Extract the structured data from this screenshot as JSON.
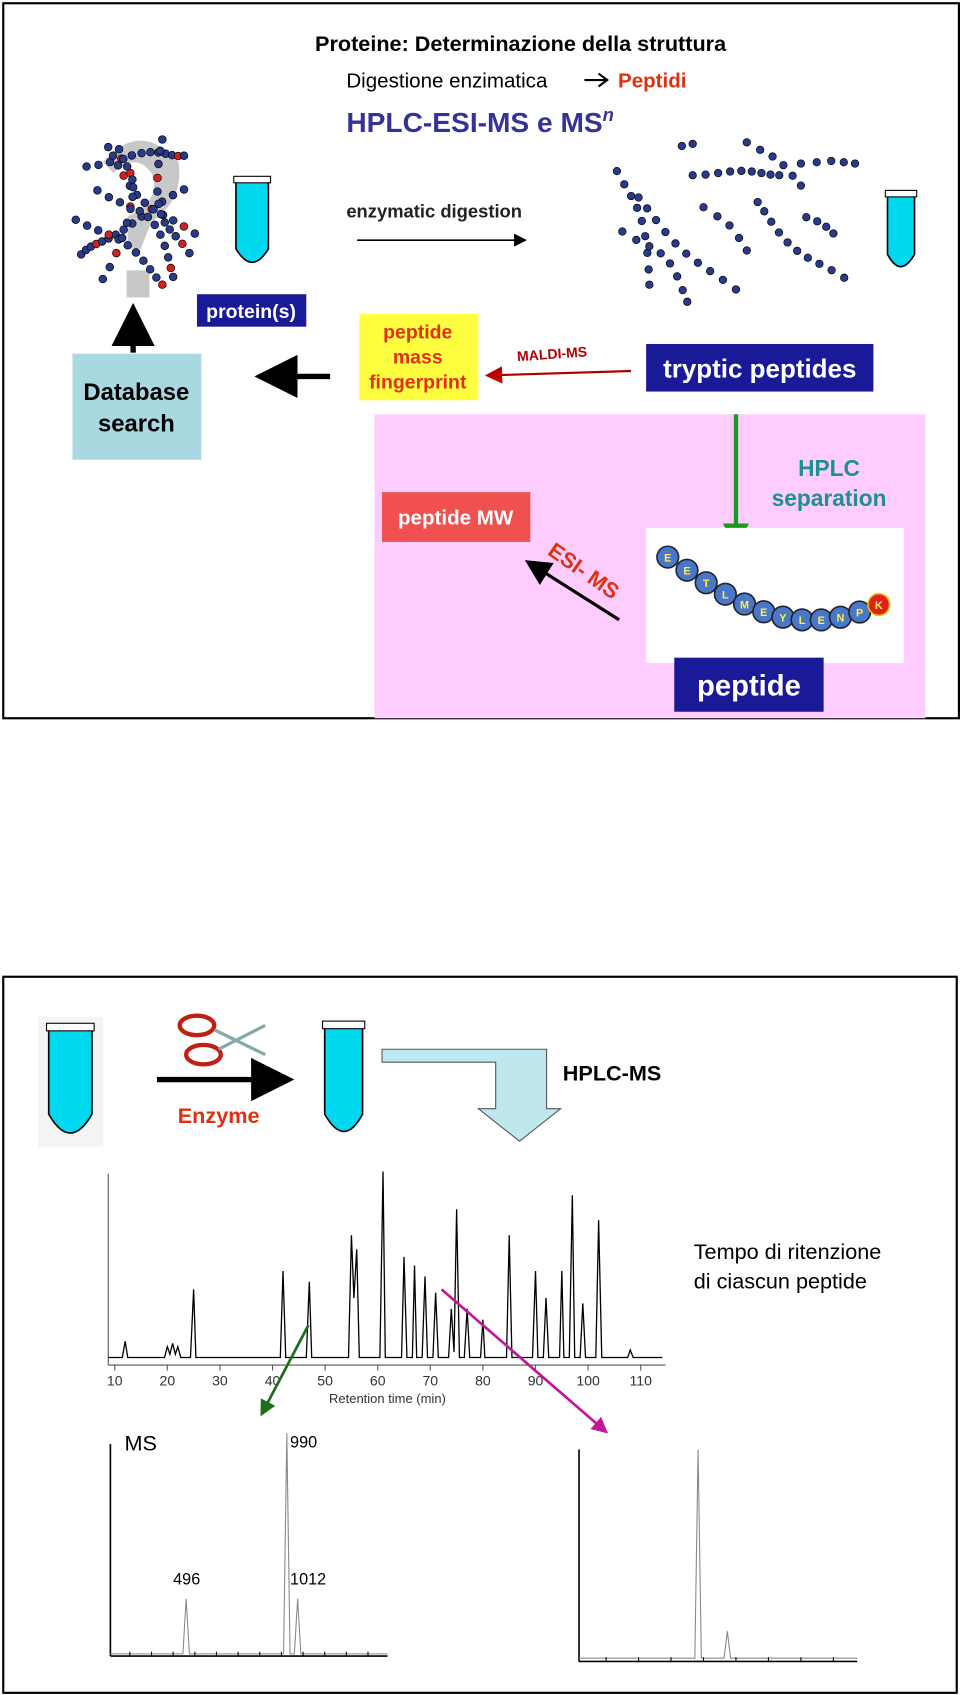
{
  "slide1": {
    "title": "Proteine: Determinazione della struttura",
    "subtitle_text": "Digestione enzimatica",
    "subtitle_highlight": "Peptidi",
    "method": "HPLC-ESI-MS e MS",
    "method_superscript": "n",
    "labels": {
      "enzymatic_digestion": "enzymatic digestion",
      "proteins": "protein(s)",
      "fingerprint": [
        "peptide",
        "mass",
        "fingerprint"
      ],
      "maldi": "MALDI-MS",
      "tryptic": "tryptic peptides",
      "database": [
        "Database",
        "search"
      ],
      "hplc": [
        "HPLC",
        "separation"
      ],
      "peptide_mw": "peptide MW",
      "esi": "ESI- MS",
      "peptide": "peptide"
    },
    "peptide_sequence": [
      "E",
      "E",
      "T",
      "L",
      "M",
      "E",
      "Y",
      "L",
      "E",
      "N",
      "P",
      "K"
    ]
  },
  "slide2": {
    "enzyme": "Enzyme",
    "hplc_ms": "HPLC-MS",
    "retention_note": [
      "Tempo di ritenzione",
      "di ciascun peptide"
    ],
    "chromatogram": {
      "x_label": "Retention time (min)",
      "xticks": [
        10,
        20,
        30,
        40,
        50,
        60,
        70,
        80,
        90,
        100,
        110
      ]
    },
    "ms_label": "MS",
    "ms_peaks": [
      990,
      496,
      1012
    ]
  }
}
